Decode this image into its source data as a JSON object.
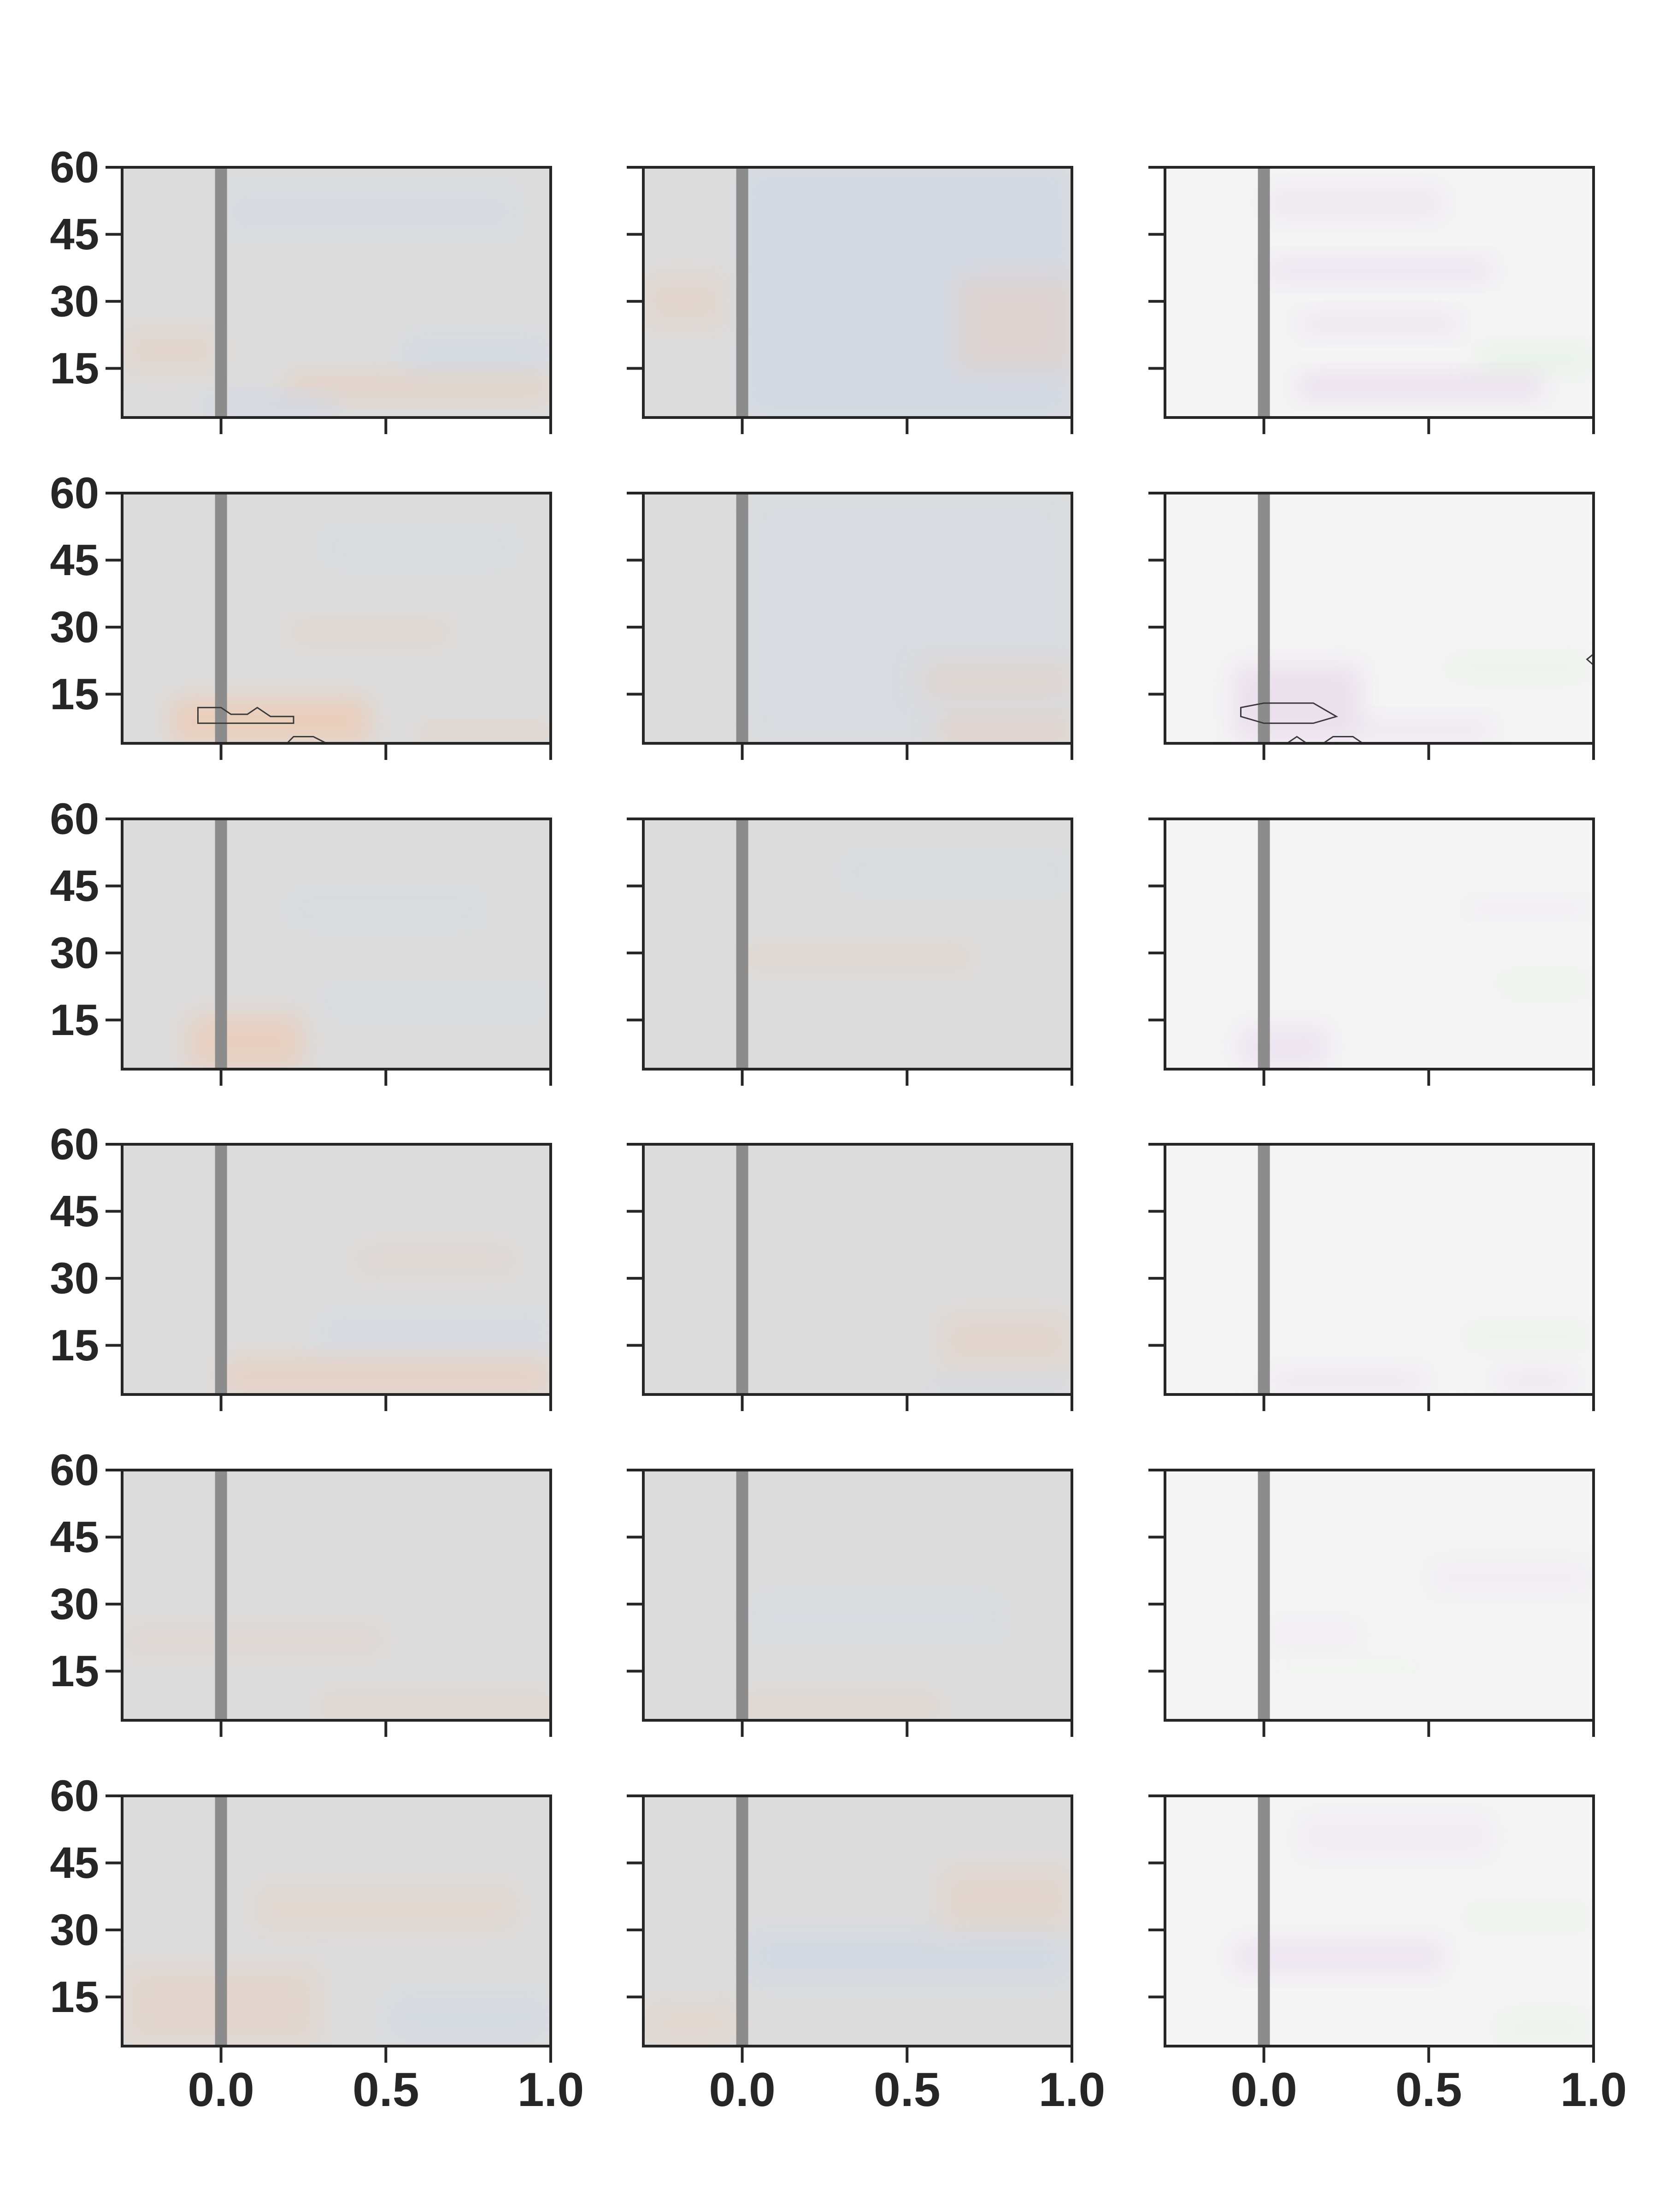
{
  "chart_data": {
    "type": "heatmap",
    "grid": {
      "rows": 6,
      "cols": 3
    },
    "xlim": [
      -0.3,
      1.0
    ],
    "ylim": [
      4,
      60
    ],
    "x_ticks": [
      0.0,
      0.5,
      1.0
    ],
    "x_tick_labels": [
      "0.0",
      "0.5",
      "1.0"
    ],
    "y_ticks": [
      15,
      30,
      45,
      60
    ],
    "y_tick_labels": [
      "15",
      "30",
      "45",
      "60"
    ],
    "event_line_x": 0.0,
    "colors": {
      "col1_background": "#dcdcdc",
      "col2_background": "#dcdcdc",
      "col3_background": "#f5f5f5",
      "warm_tint": "#f2c7ad",
      "cool_tint": "#c7d6ee",
      "purple_tint": "#e3cfe8",
      "green_tint": "#d9eed9",
      "event_line": "#8c8c8c",
      "axis": "#262626",
      "contour": "#3a3a3a"
    },
    "panels": [
      {
        "row": 0,
        "col": 0,
        "blobs": [
          {
            "x0": 0.2,
            "x1": 1.0,
            "y0": 8,
            "y1": 14,
            "tint": "warm",
            "alpha": 0.45
          },
          {
            "x0": -0.05,
            "x1": 0.35,
            "y0": 4,
            "y1": 9,
            "tint": "cool",
            "alpha": 0.5
          },
          {
            "x0": -0.3,
            "x1": 0.0,
            "y0": 14,
            "y1": 24,
            "tint": "warm",
            "alpha": 0.3
          },
          {
            "x0": 0.55,
            "x1": 1.0,
            "y0": 14,
            "y1": 22,
            "tint": "cool",
            "alpha": 0.35
          },
          {
            "x0": 0.0,
            "x1": 0.9,
            "y0": 44,
            "y1": 56,
            "tint": "cool",
            "alpha": 0.25
          }
        ],
        "contours": []
      },
      {
        "row": 0,
        "col": 1,
        "blobs": [
          {
            "x0": 0.0,
            "x1": 1.0,
            "y0": 4,
            "y1": 60,
            "tint": "cool",
            "alpha": 0.45
          },
          {
            "x0": 0.65,
            "x1": 1.0,
            "y0": 14,
            "y1": 36,
            "tint": "warm",
            "alpha": 0.35
          },
          {
            "x0": -0.3,
            "x1": -0.05,
            "y0": 24,
            "y1": 36,
            "tint": "warm",
            "alpha": 0.3
          }
        ],
        "contours": []
      },
      {
        "row": 0,
        "col": 2,
        "blobs": [
          {
            "x0": 0.1,
            "x1": 0.85,
            "y0": 8,
            "y1": 14,
            "tint": "purple",
            "alpha": 0.6
          },
          {
            "x0": 0.1,
            "x1": 0.6,
            "y0": 22,
            "y1": 28,
            "tint": "purple",
            "alpha": 0.4
          },
          {
            "x0": 0.0,
            "x1": 0.7,
            "y0": 34,
            "y1": 40,
            "tint": "purple",
            "alpha": 0.45
          },
          {
            "x0": 0.0,
            "x1": 0.55,
            "y0": 48,
            "y1": 56,
            "tint": "purple",
            "alpha": 0.35
          },
          {
            "x0": 0.65,
            "x1": 1.0,
            "y0": 14,
            "y1": 20,
            "tint": "green",
            "alpha": 0.5
          }
        ],
        "contours": []
      },
      {
        "row": 1,
        "col": 0,
        "blobs": [
          {
            "x0": -0.15,
            "x1": 0.45,
            "y0": 4,
            "y1": 14,
            "tint": "warm",
            "alpha": 0.7
          },
          {
            "x0": 0.6,
            "x1": 1.0,
            "y0": 4,
            "y1": 8,
            "tint": "warm",
            "alpha": 0.4
          },
          {
            "x0": 0.2,
            "x1": 0.7,
            "y0": 26,
            "y1": 32,
            "tint": "warm",
            "alpha": 0.25
          },
          {
            "x0": 0.3,
            "x1": 0.9,
            "y0": 44,
            "y1": 52,
            "tint": "cool",
            "alpha": 0.2
          }
        ],
        "contours": [
          {
            "points": [
              [
                -0.07,
                12
              ],
              [
                0.0,
                12
              ],
              [
                0.03,
                10.5
              ],
              [
                0.08,
                10.5
              ],
              [
                0.11,
                12
              ],
              [
                0.15,
                10
              ],
              [
                0.22,
                10
              ],
              [
                0.22,
                8.5
              ],
              [
                0.0,
                8.5
              ],
              [
                -0.07,
                8.5
              ]
            ]
          },
          {
            "points": [
              [
                0.2,
                4
              ],
              [
                0.22,
                5.5
              ],
              [
                0.28,
                5.5
              ],
              [
                0.32,
                4
              ]
            ]
          }
        ]
      },
      {
        "row": 1,
        "col": 1,
        "blobs": [
          {
            "x0": 0.0,
            "x1": 1.0,
            "y0": 4,
            "y1": 60,
            "tint": "cool",
            "alpha": 0.2
          },
          {
            "x0": 0.6,
            "x1": 1.0,
            "y0": 4,
            "y1": 10,
            "tint": "warm",
            "alpha": 0.45
          },
          {
            "x0": 0.55,
            "x1": 1.0,
            "y0": 14,
            "y1": 22,
            "tint": "warm",
            "alpha": 0.3
          }
        ],
        "contours": []
      },
      {
        "row": 1,
        "col": 2,
        "blobs": [
          {
            "x0": -0.1,
            "x1": 0.3,
            "y0": 4,
            "y1": 22,
            "tint": "purple",
            "alpha": 0.55
          },
          {
            "x0": 0.3,
            "x1": 0.7,
            "y0": 4,
            "y1": 10,
            "tint": "purple",
            "alpha": 0.35
          },
          {
            "x0": 0.55,
            "x1": 1.0,
            "y0": 18,
            "y1": 24,
            "tint": "green",
            "alpha": 0.3
          }
        ],
        "contours": [
          {
            "points": [
              [
                -0.07,
                12
              ],
              [
                0.0,
                13
              ],
              [
                0.15,
                13
              ],
              [
                0.22,
                10
              ],
              [
                0.15,
                8.5
              ],
              [
                0.0,
                8.5
              ],
              [
                -0.07,
                10
              ]
            ]
          },
          {
            "points": [
              [
                0.07,
                4
              ],
              [
                0.1,
                5.5
              ],
              [
                0.13,
                4
              ]
            ]
          },
          {
            "points": [
              [
                0.18,
                4
              ],
              [
                0.21,
                5.5
              ],
              [
                0.27,
                5.5
              ],
              [
                0.3,
                4
              ]
            ]
          },
          {
            "points": [
              [
                1.0,
                21.5
              ],
              [
                0.98,
                22.8
              ],
              [
                1.0,
                24
              ]
            ]
          }
        ]
      },
      {
        "row": 2,
        "col": 0,
        "blobs": [
          {
            "x0": -0.1,
            "x1": 0.25,
            "y0": 4,
            "y1": 16,
            "tint": "warm",
            "alpha": 0.6
          },
          {
            "x0": 0.3,
            "x1": 1.0,
            "y0": 16,
            "y1": 22,
            "tint": "cool",
            "alpha": 0.25
          },
          {
            "x0": 0.2,
            "x1": 0.8,
            "y0": 36,
            "y1": 44,
            "tint": "cool",
            "alpha": 0.2
          }
        ],
        "contours": []
      },
      {
        "row": 2,
        "col": 1,
        "blobs": [
          {
            "x0": 0.0,
            "x1": 0.7,
            "y0": 26,
            "y1": 32,
            "tint": "warm",
            "alpha": 0.25
          },
          {
            "x0": 0.3,
            "x1": 1.0,
            "y0": 44,
            "y1": 52,
            "tint": "cool",
            "alpha": 0.2
          }
        ],
        "contours": []
      },
      {
        "row": 2,
        "col": 2,
        "blobs": [
          {
            "x0": -0.08,
            "x1": 0.2,
            "y0": 4,
            "y1": 14,
            "tint": "purple",
            "alpha": 0.45
          },
          {
            "x0": 0.6,
            "x1": 1.0,
            "y0": 38,
            "y1": 42,
            "tint": "purple",
            "alpha": 0.25
          },
          {
            "x0": 0.7,
            "x1": 1.0,
            "y0": 20,
            "y1": 26,
            "tint": "green",
            "alpha": 0.25
          }
        ],
        "contours": []
      },
      {
        "row": 3,
        "col": 0,
        "blobs": [
          {
            "x0": 0.0,
            "x1": 1.0,
            "y0": 4,
            "y1": 12,
            "tint": "warm",
            "alpha": 0.5
          },
          {
            "x0": 0.3,
            "x1": 1.0,
            "y0": 14,
            "y1": 22,
            "tint": "cool",
            "alpha": 0.3
          },
          {
            "x0": 0.4,
            "x1": 0.9,
            "y0": 30,
            "y1": 38,
            "tint": "warm",
            "alpha": 0.2
          }
        ],
        "contours": []
      },
      {
        "row": 3,
        "col": 1,
        "blobs": [
          {
            "x0": 0.6,
            "x1": 1.0,
            "y0": 10,
            "y1": 22,
            "tint": "warm",
            "alpha": 0.3
          },
          {
            "x0": 0.55,
            "x1": 1.0,
            "y0": 4,
            "y1": 8,
            "tint": "cool",
            "alpha": 0.3
          }
        ],
        "contours": []
      },
      {
        "row": 3,
        "col": 2,
        "blobs": [
          {
            "x0": 0.0,
            "x1": 0.5,
            "y0": 4,
            "y1": 10,
            "tint": "purple",
            "alpha": 0.35
          },
          {
            "x0": 0.7,
            "x1": 0.95,
            "y0": 4,
            "y1": 10,
            "tint": "purple",
            "alpha": 0.35
          },
          {
            "x0": 0.6,
            "x1": 1.0,
            "y0": 14,
            "y1": 20,
            "tint": "green",
            "alpha": 0.3
          }
        ],
        "contours": []
      },
      {
        "row": 4,
        "col": 0,
        "blobs": [
          {
            "x0": 0.3,
            "x1": 1.0,
            "y0": 4,
            "y1": 10,
            "tint": "warm",
            "alpha": 0.3
          },
          {
            "x0": -0.3,
            "x1": 0.5,
            "y0": 18,
            "y1": 26,
            "tint": "warm",
            "alpha": 0.2
          }
        ],
        "contours": []
      },
      {
        "row": 4,
        "col": 1,
        "blobs": [
          {
            "x0": 0.0,
            "x1": 0.6,
            "y0": 4,
            "y1": 10,
            "tint": "warm",
            "alpha": 0.3
          },
          {
            "x0": 0.0,
            "x1": 0.8,
            "y0": 22,
            "y1": 32,
            "tint": "cool",
            "alpha": 0.2
          }
        ],
        "contours": []
      },
      {
        "row": 4,
        "col": 2,
        "blobs": [
          {
            "x0": 0.0,
            "x1": 0.3,
            "y0": 20,
            "y1": 26,
            "tint": "purple",
            "alpha": 0.25
          },
          {
            "x0": 0.5,
            "x1": 1.0,
            "y0": 32,
            "y1": 40,
            "tint": "purple",
            "alpha": 0.2
          },
          {
            "x0": 0.0,
            "x1": 0.5,
            "y0": 14,
            "y1": 18,
            "tint": "green",
            "alpha": 0.2
          }
        ],
        "contours": []
      },
      {
        "row": 5,
        "col": 0,
        "blobs": [
          {
            "x0": -0.3,
            "x1": 0.3,
            "y0": 4,
            "y1": 22,
            "tint": "warm",
            "alpha": 0.3
          },
          {
            "x0": 0.5,
            "x1": 1.0,
            "y0": 4,
            "y1": 16,
            "tint": "cool",
            "alpha": 0.3
          },
          {
            "x0": 0.1,
            "x1": 0.9,
            "y0": 30,
            "y1": 40,
            "tint": "warm",
            "alpha": 0.25
          }
        ],
        "contours": []
      },
      {
        "row": 5,
        "col": 1,
        "blobs": [
          {
            "x0": 0.0,
            "x1": 1.0,
            "y0": 18,
            "y1": 30,
            "tint": "cool",
            "alpha": 0.35
          },
          {
            "x0": 0.6,
            "x1": 1.0,
            "y0": 30,
            "y1": 44,
            "tint": "warm",
            "alpha": 0.3
          },
          {
            "x0": -0.3,
            "x1": 0.0,
            "y0": 4,
            "y1": 14,
            "tint": "warm",
            "alpha": 0.25
          }
        ],
        "contours": []
      },
      {
        "row": 5,
        "col": 2,
        "blobs": [
          {
            "x0": -0.1,
            "x1": 0.55,
            "y0": 20,
            "y1": 28,
            "tint": "purple",
            "alpha": 0.45
          },
          {
            "x0": 0.1,
            "x1": 0.7,
            "y0": 46,
            "y1": 56,
            "tint": "purple",
            "alpha": 0.25
          },
          {
            "x0": 0.7,
            "x1": 1.0,
            "y0": 4,
            "y1": 12,
            "tint": "green",
            "alpha": 0.3
          },
          {
            "x0": 0.6,
            "x1": 1.0,
            "y0": 30,
            "y1": 36,
            "tint": "green",
            "alpha": 0.25
          }
        ],
        "contours": []
      }
    ]
  }
}
